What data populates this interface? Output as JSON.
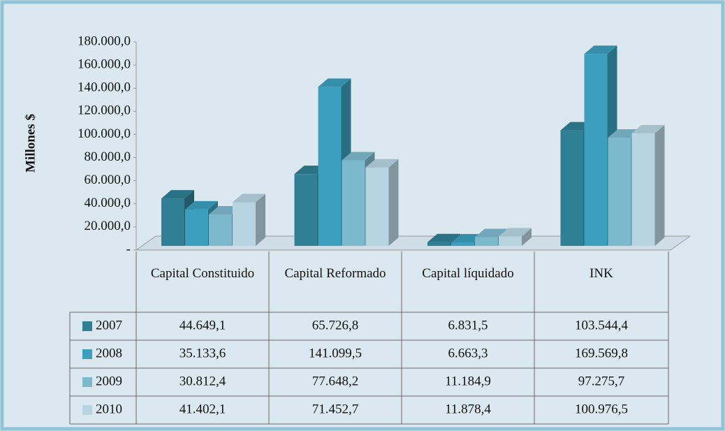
{
  "chart_data": {
    "type": "bar3d",
    "axis_label": "Millones $",
    "categories": [
      "Capital Constituido",
      "Capital Reformado",
      "Capital líquidado",
      "INK"
    ],
    "series": [
      {
        "name": "2007",
        "color": "#2f7f95",
        "values": [
          44649.1,
          65726.8,
          6831.5,
          103544.4
        ],
        "value_labels": [
          "44.649,1",
          "65.726,8",
          "6.831,5",
          "103.544,4"
        ]
      },
      {
        "name": "2008",
        "color": "#3b9fbd",
        "values": [
          35133.6,
          141099.5,
          6663.3,
          169569.8
        ],
        "value_labels": [
          "35.133,6",
          "141.099,5",
          "6.663,3",
          "169.569,8"
        ]
      },
      {
        "name": "2009",
        "color": "#7db9cd",
        "values": [
          30812.4,
          77648.2,
          11184.9,
          97275.7
        ],
        "value_labels": [
          "30.812,4",
          "77.648,2",
          "11.184,9",
          "97.275,7"
        ]
      },
      {
        "name": "2010",
        "color": "#b7d5e0",
        "values": [
          41402.1,
          71452.7,
          11878.4,
          100976.5
        ],
        "value_labels": [
          "41.402,1",
          "71.452,7",
          "11.878,4",
          "100.976,5"
        ]
      }
    ],
    "ylim": [
      0,
      180000
    ],
    "yticks": [
      {
        "value": 0,
        "label": "-"
      },
      {
        "value": 20000,
        "label": "20.000,0"
      },
      {
        "value": 40000,
        "label": "40.000,0"
      },
      {
        "value": 60000,
        "label": "60.000,0"
      },
      {
        "value": 80000,
        "label": "80.000,0"
      },
      {
        "value": 100000,
        "label": "100.000,0"
      },
      {
        "value": 120000,
        "label": "120.000,0"
      },
      {
        "value": 140000,
        "label": "140.000,0"
      },
      {
        "value": 160000,
        "label": "160.000,0"
      },
      {
        "value": 180000,
        "label": "180.000,0"
      }
    ]
  }
}
